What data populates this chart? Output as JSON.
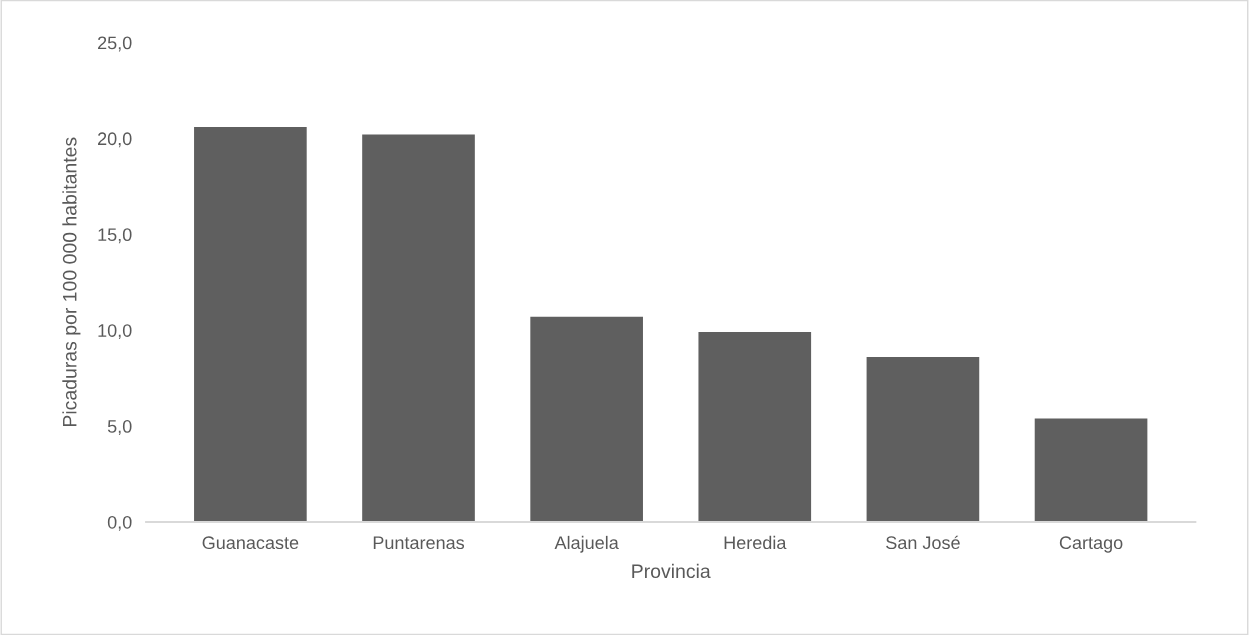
{
  "chart_data": {
    "type": "bar",
    "xlabel": "Provincia",
    "ylabel": "Picaduras por 100 000 habitantes",
    "categories": [
      "Guanacaste",
      "Puntarenas",
      "Alajuela",
      "Heredia",
      "San José",
      "Cartago"
    ],
    "values": [
      20.6,
      20.2,
      10.7,
      9.9,
      8.6,
      5.4
    ],
    "color": "#5f5f5f",
    "ylim": [
      0,
      25
    ],
    "yticks": [
      {
        "value": 0,
        "label": "0,0"
      },
      {
        "value": 5,
        "label": "5,0"
      },
      {
        "value": 10,
        "label": "10,0"
      },
      {
        "value": 15,
        "label": "15,0"
      },
      {
        "value": 20,
        "label": "20,0"
      },
      {
        "value": 25,
        "label": "25,0"
      }
    ],
    "grid": false,
    "legend": false
  }
}
